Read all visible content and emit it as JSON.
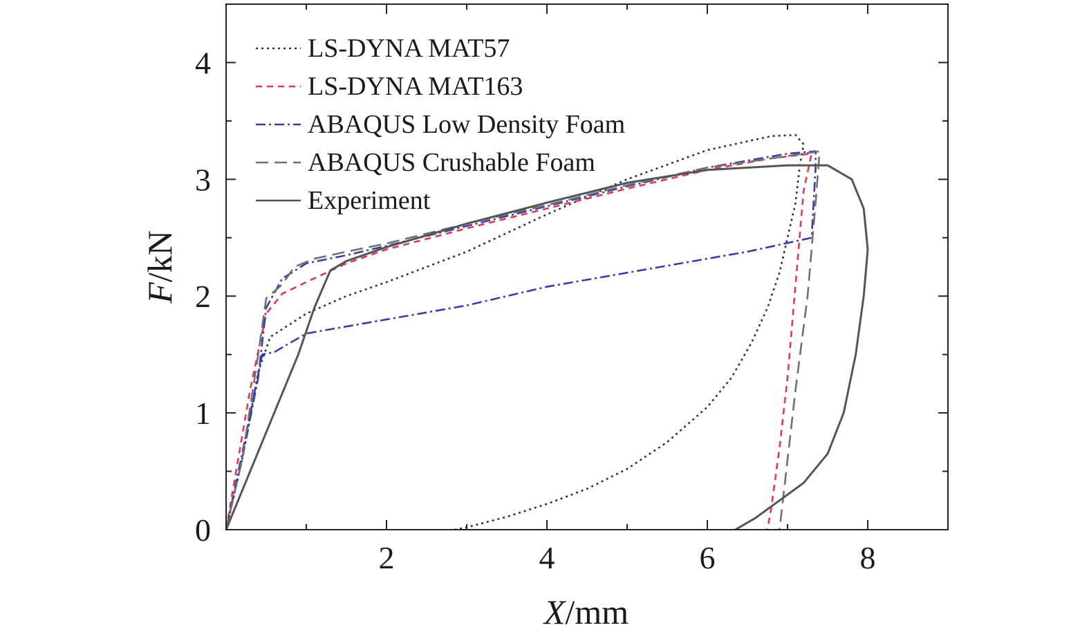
{
  "chart_data": {
    "type": "line",
    "title": "",
    "xlabel": {
      "italic": "X",
      "rest": "/mm"
    },
    "ylabel": {
      "italic": "F",
      "rest": "/kN"
    },
    "xlim": [
      0,
      9
    ],
    "ylim": [
      0,
      4.5
    ],
    "xticks": [
      2,
      4,
      6,
      8
    ],
    "yticks": [
      0,
      1,
      2,
      3,
      4
    ],
    "xtick_labels": [
      "2",
      "4",
      "6",
      "8"
    ],
    "ytick_labels": [
      "0",
      "1",
      "2",
      "3",
      "4"
    ],
    "grid": false,
    "legend_position": "top-left",
    "series": [
      {
        "name": "LS-DYNA MAT57",
        "color": "#333333",
        "dash": "3,5",
        "points": [
          [
            0,
            0
          ],
          [
            0.2,
            0.6
          ],
          [
            0.4,
            1.35
          ],
          [
            0.55,
            1.65
          ],
          [
            1,
            1.85
          ],
          [
            1.5,
            2.0
          ],
          [
            2,
            2.12
          ],
          [
            3,
            2.38
          ],
          [
            4,
            2.7
          ],
          [
            5,
            3.0
          ],
          [
            6,
            3.25
          ],
          [
            6.8,
            3.37
          ],
          [
            7.1,
            3.38
          ],
          [
            7.2,
            3.3
          ],
          [
            7.15,
            3.1
          ],
          [
            7.1,
            2.8
          ],
          [
            7.0,
            2.5
          ],
          [
            6.9,
            2.2
          ],
          [
            6.75,
            1.9
          ],
          [
            6.55,
            1.6
          ],
          [
            6.3,
            1.3
          ],
          [
            6,
            1.05
          ],
          [
            5.5,
            0.75
          ],
          [
            5,
            0.52
          ],
          [
            4.5,
            0.35
          ],
          [
            4,
            0.22
          ],
          [
            3.5,
            0.11
          ],
          [
            3,
            0.02
          ],
          [
            2.85,
            0
          ]
        ]
      },
      {
        "name": "LS-DYNA MAT163",
        "color": "#e3345a",
        "dash": "9,7",
        "points": [
          [
            0,
            0
          ],
          [
            0.3,
            1.2
          ],
          [
            0.5,
            1.85
          ],
          [
            0.7,
            2.02
          ],
          [
            1,
            2.12
          ],
          [
            1.5,
            2.28
          ],
          [
            2,
            2.4
          ],
          [
            3,
            2.58
          ],
          [
            4,
            2.75
          ],
          [
            5,
            2.92
          ],
          [
            6,
            3.08
          ],
          [
            6.8,
            3.18
          ],
          [
            7.3,
            3.22
          ],
          [
            7.2,
            2.9
          ],
          [
            7.1,
            2.1
          ],
          [
            7.0,
            1.3
          ],
          [
            6.9,
            0.7
          ],
          [
            6.8,
            0.2
          ],
          [
            6.75,
            0
          ]
        ]
      },
      {
        "name": "ABAQUS Low Density Foam",
        "color": "#3b3ba6",
        "dash": "14,5,3,5",
        "points": [
          [
            0,
            0
          ],
          [
            0.2,
            0.6
          ],
          [
            0.4,
            1.3
          ],
          [
            0.5,
            1.9
          ],
          [
            0.7,
            2.15
          ],
          [
            1,
            2.28
          ],
          [
            1.5,
            2.35
          ],
          [
            2,
            2.43
          ],
          [
            3,
            2.6
          ],
          [
            4,
            2.77
          ],
          [
            5,
            2.94
          ],
          [
            6,
            3.1
          ],
          [
            7,
            3.22
          ],
          [
            7.35,
            3.24
          ],
          [
            7.35,
            3.1
          ],
          [
            7.3,
            2.5
          ],
          [
            6.5,
            2.38
          ],
          [
            5,
            2.2
          ],
          [
            4,
            2.08
          ],
          [
            3,
            1.92
          ],
          [
            2,
            1.8
          ],
          [
            1,
            1.68
          ],
          [
            0.6,
            1.52
          ],
          [
            0.45,
            1.5
          ],
          [
            0.2,
            0.65
          ],
          [
            0,
            0
          ]
        ]
      },
      {
        "name": "ABAQUS Crushable Foam",
        "color": "#707070",
        "dash": "18,9",
        "points": [
          [
            0,
            0
          ],
          [
            0.2,
            0.6
          ],
          [
            0.4,
            1.5
          ],
          [
            0.5,
            1.98
          ],
          [
            0.7,
            2.1
          ],
          [
            0.85,
            2.25
          ],
          [
            1.1,
            2.32
          ],
          [
            1.5,
            2.38
          ],
          [
            2,
            2.45
          ],
          [
            3,
            2.62
          ],
          [
            4,
            2.78
          ],
          [
            5,
            2.95
          ],
          [
            6,
            3.1
          ],
          [
            7,
            3.2
          ],
          [
            7.4,
            3.24
          ],
          [
            7.35,
            2.8
          ],
          [
            7.25,
            2.0
          ],
          [
            7.1,
            1.2
          ],
          [
            7.0,
            0.6
          ],
          [
            6.9,
            0
          ]
        ]
      },
      {
        "name": "Experiment",
        "color": "#555555",
        "dash": "",
        "points": [
          [
            0,
            0
          ],
          [
            0.3,
            0.5
          ],
          [
            0.6,
            1.0
          ],
          [
            0.9,
            1.5
          ],
          [
            1.1,
            1.9
          ],
          [
            1.3,
            2.22
          ],
          [
            1.5,
            2.3
          ],
          [
            2,
            2.42
          ],
          [
            3,
            2.62
          ],
          [
            4,
            2.8
          ],
          [
            5,
            2.97
          ],
          [
            6,
            3.08
          ],
          [
            7,
            3.12
          ],
          [
            7.5,
            3.12
          ],
          [
            7.8,
            3.0
          ],
          [
            7.95,
            2.75
          ],
          [
            8.0,
            2.4
          ],
          [
            7.95,
            2.0
          ],
          [
            7.85,
            1.5
          ],
          [
            7.7,
            1.0
          ],
          [
            7.5,
            0.65
          ],
          [
            7.2,
            0.4
          ],
          [
            7.0,
            0.3
          ],
          [
            6.8,
            0.2
          ],
          [
            6.6,
            0.1
          ],
          [
            6.35,
            0
          ]
        ]
      }
    ]
  }
}
